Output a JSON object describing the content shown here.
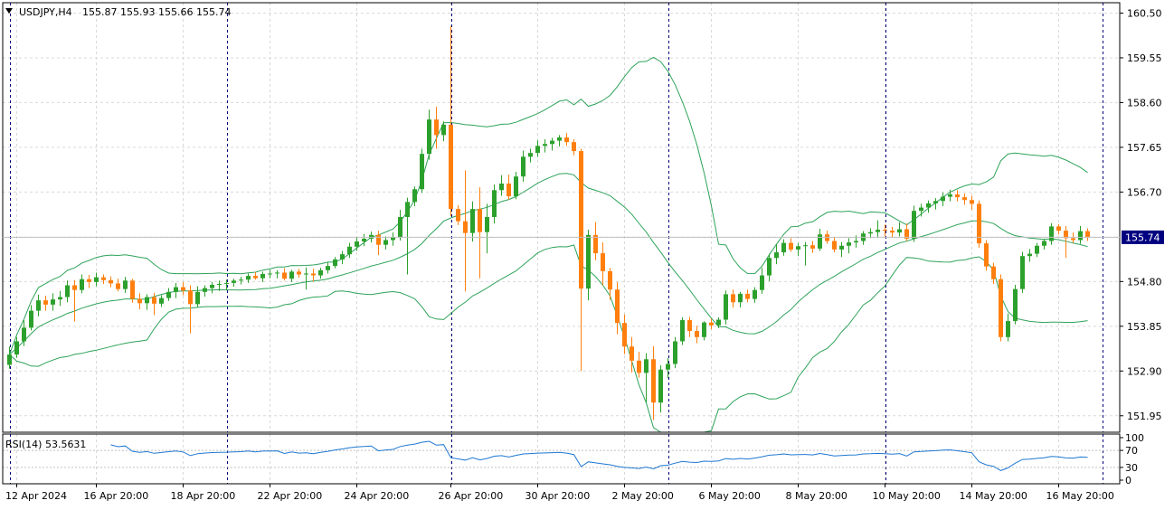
{
  "header": {
    "symbol_label": "USDJPY,H4",
    "ohlc_label": "155.87 155.93 155.66 155.74"
  },
  "indicator": {
    "label": "RSI(14) 53.5631"
  },
  "colors": {
    "bull": "#2ca02c",
    "bear": "#ff7f0e",
    "band": "#2ea35a",
    "rsi": "#1e78d2",
    "grid": "#d9d9d9",
    "axis": "#000000",
    "price_tag_bg": "#000080"
  },
  "chart_data": [
    {
      "type": "candlestick",
      "title": "USDJPY,H4",
      "price_axis": {
        "ticks": [
          160.5,
          159.55,
          158.6,
          157.65,
          156.7,
          155.74,
          154.8,
          153.85,
          152.9,
          151.95
        ],
        "tick_labels": [
          "160.50",
          "159.55",
          "158.60",
          "157.65",
          "156.70",
          "155.74",
          "154.80",
          "153.85",
          "152.90",
          "151.95"
        ],
        "ylim": [
          151.6,
          160.72
        ],
        "current_price": 155.74,
        "current_price_label": "155.74"
      },
      "time_axis": {
        "labels": [
          "12 Apr 2024",
          "16 Apr 20:00",
          "18 Apr 20:00",
          "22 Apr 20:00",
          "24 Apr 20:00",
          "26 Apr 20:00",
          "30 Apr 20:00",
          "2 May 20:00",
          "6 May 20:00",
          "8 May 20:00",
          "10 May 20:00",
          "14 May 20:00",
          "16 May 20:00"
        ],
        "label_bar_index": [
          1,
          12,
          24,
          36,
          48,
          61,
          73,
          85,
          97,
          109,
          121,
          133,
          145
        ],
        "day_separator_bar_index": [
          0,
          30,
          61,
          91,
          121,
          151
        ]
      },
      "grid": true,
      "candles": [
        {
          "o": 153.03,
          "h": 153.42,
          "l": 152.95,
          "c": 153.25
        },
        {
          "o": 153.25,
          "h": 153.62,
          "l": 153.18,
          "c": 153.53
        },
        {
          "o": 153.53,
          "h": 153.98,
          "l": 153.43,
          "c": 153.82
        },
        {
          "o": 153.82,
          "h": 154.3,
          "l": 153.76,
          "c": 154.18
        },
        {
          "o": 154.18,
          "h": 154.52,
          "l": 154.06,
          "c": 154.4
        },
        {
          "o": 154.4,
          "h": 154.5,
          "l": 154.18,
          "c": 154.31
        },
        {
          "o": 154.31,
          "h": 154.55,
          "l": 154.18,
          "c": 154.42
        },
        {
          "o": 154.42,
          "h": 154.6,
          "l": 154.28,
          "c": 154.47
        },
        {
          "o": 154.47,
          "h": 154.82,
          "l": 154.36,
          "c": 154.72
        },
        {
          "o": 154.72,
          "h": 154.83,
          "l": 153.95,
          "c": 154.62
        },
        {
          "o": 154.62,
          "h": 154.95,
          "l": 154.55,
          "c": 154.85
        },
        {
          "o": 154.85,
          "h": 154.94,
          "l": 154.66,
          "c": 154.79
        },
        {
          "o": 154.79,
          "h": 154.99,
          "l": 154.7,
          "c": 154.89
        },
        {
          "o": 154.89,
          "h": 154.95,
          "l": 154.75,
          "c": 154.83
        },
        {
          "o": 154.83,
          "h": 154.91,
          "l": 154.68,
          "c": 154.76
        },
        {
          "o": 154.76,
          "h": 154.86,
          "l": 154.59,
          "c": 154.64
        },
        {
          "o": 154.64,
          "h": 154.9,
          "l": 154.56,
          "c": 154.82
        },
        {
          "o": 154.82,
          "h": 154.86,
          "l": 154.35,
          "c": 154.43
        },
        {
          "o": 154.43,
          "h": 154.55,
          "l": 154.21,
          "c": 154.34
        },
        {
          "o": 154.34,
          "h": 154.53,
          "l": 154.2,
          "c": 154.47
        },
        {
          "o": 154.47,
          "h": 154.56,
          "l": 154.09,
          "c": 154.33
        },
        {
          "o": 154.33,
          "h": 154.51,
          "l": 154.26,
          "c": 154.45
        },
        {
          "o": 154.45,
          "h": 154.66,
          "l": 154.39,
          "c": 154.58
        },
        {
          "o": 154.58,
          "h": 154.77,
          "l": 154.45,
          "c": 154.68
        },
        {
          "o": 154.68,
          "h": 154.79,
          "l": 154.51,
          "c": 154.61
        },
        {
          "o": 154.61,
          "h": 154.72,
          "l": 153.7,
          "c": 154.32
        },
        {
          "o": 154.32,
          "h": 154.7,
          "l": 154.26,
          "c": 154.58
        },
        {
          "o": 154.58,
          "h": 154.72,
          "l": 154.48,
          "c": 154.66
        },
        {
          "o": 154.66,
          "h": 154.79,
          "l": 154.55,
          "c": 154.73
        },
        {
          "o": 154.73,
          "h": 154.82,
          "l": 154.6,
          "c": 154.75
        },
        {
          "o": 154.75,
          "h": 154.84,
          "l": 154.62,
          "c": 154.77
        },
        {
          "o": 154.77,
          "h": 154.86,
          "l": 154.69,
          "c": 154.82
        },
        {
          "o": 154.82,
          "h": 154.9,
          "l": 154.74,
          "c": 154.84
        },
        {
          "o": 154.84,
          "h": 154.97,
          "l": 154.77,
          "c": 154.92
        },
        {
          "o": 154.92,
          "h": 155.0,
          "l": 154.84,
          "c": 154.87
        },
        {
          "o": 154.87,
          "h": 155.01,
          "l": 154.79,
          "c": 154.96
        },
        {
          "o": 154.96,
          "h": 155.05,
          "l": 154.87,
          "c": 154.97
        },
        {
          "o": 154.97,
          "h": 155.04,
          "l": 154.87,
          "c": 154.99
        },
        {
          "o": 154.99,
          "h": 155.08,
          "l": 154.82,
          "c": 154.86
        },
        {
          "o": 154.86,
          "h": 155.05,
          "l": 154.79,
          "c": 155.01
        },
        {
          "o": 155.01,
          "h": 155.07,
          "l": 154.88,
          "c": 154.95
        },
        {
          "o": 154.95,
          "h": 155.1,
          "l": 154.63,
          "c": 154.97
        },
        {
          "o": 154.97,
          "h": 155.07,
          "l": 154.8,
          "c": 154.93
        },
        {
          "o": 154.93,
          "h": 155.09,
          "l": 154.86,
          "c": 155.04
        },
        {
          "o": 155.04,
          "h": 155.21,
          "l": 154.97,
          "c": 155.13
        },
        {
          "o": 155.13,
          "h": 155.32,
          "l": 155.08,
          "c": 155.27
        },
        {
          "o": 155.27,
          "h": 155.45,
          "l": 155.17,
          "c": 155.38
        },
        {
          "o": 155.38,
          "h": 155.62,
          "l": 155.3,
          "c": 155.54
        },
        {
          "o": 155.54,
          "h": 155.75,
          "l": 155.45,
          "c": 155.65
        },
        {
          "o": 155.65,
          "h": 155.81,
          "l": 155.55,
          "c": 155.71
        },
        {
          "o": 155.71,
          "h": 155.86,
          "l": 155.63,
          "c": 155.79
        },
        {
          "o": 155.79,
          "h": 155.88,
          "l": 155.36,
          "c": 155.58
        },
        {
          "o": 155.58,
          "h": 155.76,
          "l": 155.48,
          "c": 155.68
        },
        {
          "o": 155.68,
          "h": 155.84,
          "l": 155.56,
          "c": 155.74
        },
        {
          "o": 155.74,
          "h": 156.32,
          "l": 155.67,
          "c": 156.17
        },
        {
          "o": 156.17,
          "h": 156.58,
          "l": 154.95,
          "c": 156.49
        },
        {
          "o": 156.49,
          "h": 156.82,
          "l": 156.4,
          "c": 156.76
        },
        {
          "o": 156.76,
          "h": 157.62,
          "l": 156.68,
          "c": 157.51
        },
        {
          "o": 157.51,
          "h": 158.45,
          "l": 157.39,
          "c": 158.24
        },
        {
          "o": 158.24,
          "h": 158.51,
          "l": 157.62,
          "c": 157.91
        },
        {
          "o": 157.91,
          "h": 158.2,
          "l": 157.78,
          "c": 158.13
        },
        {
          "o": 158.13,
          "h": 160.22,
          "l": 156.19,
          "c": 156.34
        },
        {
          "o": 156.34,
          "h": 156.42,
          "l": 156.0,
          "c": 156.08
        },
        {
          "o": 156.08,
          "h": 157.16,
          "l": 154.59,
          "c": 155.83
        },
        {
          "o": 155.83,
          "h": 156.5,
          "l": 155.65,
          "c": 156.34
        },
        {
          "o": 156.34,
          "h": 156.8,
          "l": 154.87,
          "c": 155.85
        },
        {
          "o": 155.85,
          "h": 156.45,
          "l": 155.4,
          "c": 156.17
        },
        {
          "o": 156.17,
          "h": 156.86,
          "l": 156.03,
          "c": 156.74
        },
        {
          "o": 156.74,
          "h": 157.06,
          "l": 156.62,
          "c": 156.88
        },
        {
          "o": 156.88,
          "h": 157.07,
          "l": 156.54,
          "c": 156.61
        },
        {
          "o": 156.61,
          "h": 157.13,
          "l": 156.55,
          "c": 157.03
        },
        {
          "o": 157.03,
          "h": 157.58,
          "l": 156.92,
          "c": 157.45
        },
        {
          "o": 157.45,
          "h": 157.62,
          "l": 157.33,
          "c": 157.53
        },
        {
          "o": 157.53,
          "h": 157.8,
          "l": 157.45,
          "c": 157.68
        },
        {
          "o": 157.68,
          "h": 157.82,
          "l": 157.54,
          "c": 157.72
        },
        {
          "o": 157.72,
          "h": 157.85,
          "l": 157.58,
          "c": 157.79
        },
        {
          "o": 157.79,
          "h": 157.91,
          "l": 157.67,
          "c": 157.86
        },
        {
          "o": 157.86,
          "h": 157.95,
          "l": 157.68,
          "c": 157.76
        },
        {
          "o": 157.76,
          "h": 157.82,
          "l": 157.48,
          "c": 157.57
        },
        {
          "o": 157.57,
          "h": 157.62,
          "l": 152.9,
          "c": 154.65
        },
        {
          "o": 154.65,
          "h": 155.9,
          "l": 154.4,
          "c": 155.79
        },
        {
          "o": 155.79,
          "h": 156.06,
          "l": 155.25,
          "c": 155.4
        },
        {
          "o": 155.4,
          "h": 155.63,
          "l": 154.72,
          "c": 155.02
        },
        {
          "o": 155.02,
          "h": 155.09,
          "l": 154.41,
          "c": 154.63
        },
        {
          "o": 154.63,
          "h": 154.79,
          "l": 153.68,
          "c": 153.92
        },
        {
          "o": 153.92,
          "h": 154.1,
          "l": 153.26,
          "c": 153.42
        },
        {
          "o": 153.42,
          "h": 153.62,
          "l": 152.87,
          "c": 153.12
        },
        {
          "o": 153.12,
          "h": 153.31,
          "l": 152.76,
          "c": 152.86
        },
        {
          "o": 152.86,
          "h": 153.28,
          "l": 152.23,
          "c": 153.15
        },
        {
          "o": 153.15,
          "h": 153.43,
          "l": 151.86,
          "c": 152.23
        },
        {
          "o": 152.23,
          "h": 153.02,
          "l": 152.02,
          "c": 152.93
        },
        {
          "o": 152.93,
          "h": 153.18,
          "l": 152.75,
          "c": 153.05
        },
        {
          "o": 153.05,
          "h": 153.62,
          "l": 152.96,
          "c": 153.53
        },
        {
          "o": 153.53,
          "h": 154.04,
          "l": 153.45,
          "c": 153.98
        },
        {
          "o": 153.98,
          "h": 154.05,
          "l": 153.62,
          "c": 153.75
        },
        {
          "o": 153.75,
          "h": 153.86,
          "l": 153.49,
          "c": 153.62
        },
        {
          "o": 153.62,
          "h": 153.96,
          "l": 153.55,
          "c": 153.93
        },
        {
          "o": 153.93,
          "h": 154.01,
          "l": 153.79,
          "c": 153.87
        },
        {
          "o": 153.87,
          "h": 154.04,
          "l": 153.81,
          "c": 153.99
        },
        {
          "o": 153.99,
          "h": 154.61,
          "l": 153.89,
          "c": 154.53
        },
        {
          "o": 154.53,
          "h": 154.63,
          "l": 154.25,
          "c": 154.36
        },
        {
          "o": 154.36,
          "h": 154.58,
          "l": 154.25,
          "c": 154.54
        },
        {
          "o": 154.54,
          "h": 154.63,
          "l": 154.36,
          "c": 154.43
        },
        {
          "o": 154.43,
          "h": 154.68,
          "l": 154.35,
          "c": 154.62
        },
        {
          "o": 154.62,
          "h": 155.09,
          "l": 154.54,
          "c": 154.93
        },
        {
          "o": 154.93,
          "h": 155.39,
          "l": 154.81,
          "c": 155.3
        },
        {
          "o": 155.3,
          "h": 155.59,
          "l": 155.17,
          "c": 155.42
        },
        {
          "o": 155.42,
          "h": 155.7,
          "l": 155.35,
          "c": 155.62
        },
        {
          "o": 155.62,
          "h": 155.72,
          "l": 155.43,
          "c": 155.48
        },
        {
          "o": 155.48,
          "h": 155.62,
          "l": 155.34,
          "c": 155.55
        },
        {
          "o": 155.55,
          "h": 155.64,
          "l": 155.14,
          "c": 155.57
        },
        {
          "o": 155.57,
          "h": 155.66,
          "l": 155.41,
          "c": 155.5
        },
        {
          "o": 155.5,
          "h": 155.92,
          "l": 155.45,
          "c": 155.8
        },
        {
          "o": 155.8,
          "h": 155.88,
          "l": 155.6,
          "c": 155.66
        },
        {
          "o": 155.66,
          "h": 155.74,
          "l": 155.42,
          "c": 155.48
        },
        {
          "o": 155.48,
          "h": 155.64,
          "l": 155.32,
          "c": 155.56
        },
        {
          "o": 155.56,
          "h": 155.72,
          "l": 155.4,
          "c": 155.63
        },
        {
          "o": 155.63,
          "h": 155.78,
          "l": 155.52,
          "c": 155.66
        },
        {
          "o": 155.66,
          "h": 155.87,
          "l": 155.58,
          "c": 155.82
        },
        {
          "o": 155.82,
          "h": 155.93,
          "l": 155.72,
          "c": 155.85
        },
        {
          "o": 155.85,
          "h": 156.1,
          "l": 155.73,
          "c": 155.9
        },
        {
          "o": 155.9,
          "h": 156.01,
          "l": 155.76,
          "c": 155.88
        },
        {
          "o": 155.88,
          "h": 155.96,
          "l": 155.73,
          "c": 155.84
        },
        {
          "o": 155.84,
          "h": 156.06,
          "l": 155.76,
          "c": 155.91
        },
        {
          "o": 155.91,
          "h": 156.03,
          "l": 155.66,
          "c": 155.71
        },
        {
          "o": 155.71,
          "h": 156.41,
          "l": 155.64,
          "c": 156.3
        },
        {
          "o": 156.3,
          "h": 156.45,
          "l": 156.18,
          "c": 156.37
        },
        {
          "o": 156.37,
          "h": 156.52,
          "l": 156.26,
          "c": 156.46
        },
        {
          "o": 156.46,
          "h": 156.57,
          "l": 156.33,
          "c": 156.51
        },
        {
          "o": 156.51,
          "h": 156.69,
          "l": 156.4,
          "c": 156.6
        },
        {
          "o": 156.6,
          "h": 156.75,
          "l": 156.5,
          "c": 156.65
        },
        {
          "o": 156.65,
          "h": 156.74,
          "l": 156.5,
          "c": 156.59
        },
        {
          "o": 156.59,
          "h": 156.67,
          "l": 156.43,
          "c": 156.53
        },
        {
          "o": 156.53,
          "h": 156.62,
          "l": 156.32,
          "c": 156.45
        },
        {
          "o": 156.45,
          "h": 156.52,
          "l": 155.52,
          "c": 155.61
        },
        {
          "o": 155.61,
          "h": 155.68,
          "l": 155.03,
          "c": 155.12
        },
        {
          "o": 155.12,
          "h": 155.2,
          "l": 154.75,
          "c": 154.85
        },
        {
          "o": 154.85,
          "h": 154.95,
          "l": 153.53,
          "c": 153.62
        },
        {
          "o": 153.62,
          "h": 154.12,
          "l": 153.53,
          "c": 153.96
        },
        {
          "o": 153.96,
          "h": 154.73,
          "l": 153.89,
          "c": 154.64
        },
        {
          "o": 154.64,
          "h": 155.43,
          "l": 154.56,
          "c": 155.34
        },
        {
          "o": 155.34,
          "h": 155.49,
          "l": 155.22,
          "c": 155.39
        },
        {
          "o": 155.39,
          "h": 155.62,
          "l": 155.32,
          "c": 155.56
        },
        {
          "o": 155.56,
          "h": 155.71,
          "l": 155.48,
          "c": 155.66
        },
        {
          "o": 155.66,
          "h": 156.04,
          "l": 155.58,
          "c": 155.97
        },
        {
          "o": 155.97,
          "h": 156.02,
          "l": 155.8,
          "c": 155.88
        },
        {
          "o": 155.88,
          "h": 155.98,
          "l": 155.3,
          "c": 155.72
        },
        {
          "o": 155.72,
          "h": 155.84,
          "l": 155.62,
          "c": 155.68
        },
        {
          "o": 155.68,
          "h": 155.98,
          "l": 155.6,
          "c": 155.87
        },
        {
          "o": 155.87,
          "h": 155.93,
          "l": 155.66,
          "c": 155.74
        }
      ],
      "bollinger_bands": {
        "period": 20,
        "std_dev": 2,
        "middle_label": "",
        "upper_label": "",
        "lower_label": ""
      }
    },
    {
      "type": "line",
      "title": "RSI(14) 53.5631",
      "indicator": "RSI",
      "period": 14,
      "ylim": [
        0,
        100
      ],
      "tick_labels": [
        "100",
        "70",
        "30",
        "0"
      ],
      "ticks": [
        100,
        70,
        30,
        0
      ],
      "last_value": 53.5631
    }
  ]
}
